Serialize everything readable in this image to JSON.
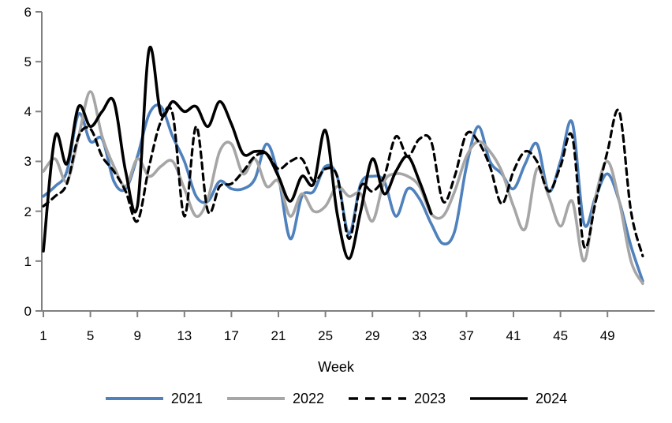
{
  "chart_data": {
    "type": "line",
    "title": "",
    "xlabel": "Week",
    "ylabel": "",
    "xlim": [
      1,
      52
    ],
    "ylim": [
      0,
      6
    ],
    "x_ticks": [
      1,
      5,
      9,
      13,
      17,
      21,
      25,
      29,
      33,
      37,
      41,
      45,
      49
    ],
    "y_ticks": [
      0,
      1,
      2,
      3,
      4,
      5,
      6
    ],
    "grid": "off",
    "legend_position": "bottom",
    "axis_color": "#808080",
    "text_color": "#000000",
    "series": [
      {
        "name": "2021",
        "color": "#4F81BD",
        "style": "solid",
        "values": [
          2.3,
          2.5,
          2.8,
          3.95,
          3.4,
          3.45,
          2.6,
          2.45,
          3.1,
          3.95,
          4.1,
          3.5,
          3.0,
          2.3,
          2.2,
          2.6,
          2.45,
          2.45,
          2.65,
          3.35,
          2.7,
          1.45,
          2.3,
          2.4,
          2.9,
          2.7,
          1.55,
          2.55,
          2.7,
          2.6,
          1.9,
          2.45,
          2.25,
          1.75,
          1.35,
          1.6,
          2.9,
          3.7,
          3.0,
          2.75,
          2.45,
          2.95,
          3.35,
          2.4,
          3.0,
          3.78,
          1.75,
          2.3,
          2.75,
          2.2,
          1.3,
          0.6
        ]
      },
      {
        "name": "2022",
        "color": "#A6A6A6",
        "style": "solid",
        "values": [
          2.8,
          3.05,
          2.6,
          3.5,
          4.4,
          3.5,
          2.9,
          2.5,
          3.05,
          2.7,
          2.9,
          3.0,
          2.45,
          1.9,
          2.25,
          3.2,
          3.35,
          2.75,
          3.05,
          2.5,
          2.6,
          1.9,
          2.35,
          2.0,
          2.1,
          2.5,
          2.3,
          2.35,
          1.8,
          2.6,
          2.75,
          2.7,
          2.5,
          1.95,
          1.9,
          2.4,
          3.1,
          3.4,
          3.2,
          2.8,
          2.1,
          1.65,
          2.85,
          2.3,
          1.7,
          2.2,
          1.0,
          2.3,
          3.0,
          2.2,
          1.0,
          0.55
        ]
      },
      {
        "name": "2023",
        "color": "#000000",
        "style": "dashed",
        "values": [
          2.1,
          2.3,
          2.55,
          3.5,
          3.65,
          3.1,
          2.8,
          2.4,
          1.8,
          2.9,
          3.8,
          3.95,
          1.9,
          3.7,
          2.0,
          2.5,
          2.55,
          2.8,
          3.1,
          3.15,
          2.85,
          3.0,
          3.05,
          2.6,
          2.85,
          2.7,
          1.45,
          2.5,
          2.4,
          2.7,
          3.5,
          3.1,
          3.45,
          3.4,
          2.2,
          2.7,
          3.55,
          3.4,
          2.9,
          2.15,
          2.8,
          3.2,
          3.0,
          2.4,
          2.9,
          3.5,
          1.3,
          2.2,
          3.2,
          4.0,
          2.0,
          1.1
        ]
      },
      {
        "name": "2024",
        "color": "#000000",
        "style": "solid",
        "values": [
          1.2,
          3.5,
          2.95,
          4.1,
          3.7,
          4.0,
          4.2,
          2.8,
          2.1,
          5.25,
          3.95,
          4.2,
          4.0,
          4.1,
          3.7,
          4.2,
          3.75,
          3.15,
          3.2,
          3.15,
          2.7,
          2.2,
          2.7,
          2.55,
          3.62,
          1.95,
          1.05,
          2.0,
          3.05,
          2.35,
          2.8,
          3.1,
          2.6,
          1.95
        ]
      }
    ]
  }
}
